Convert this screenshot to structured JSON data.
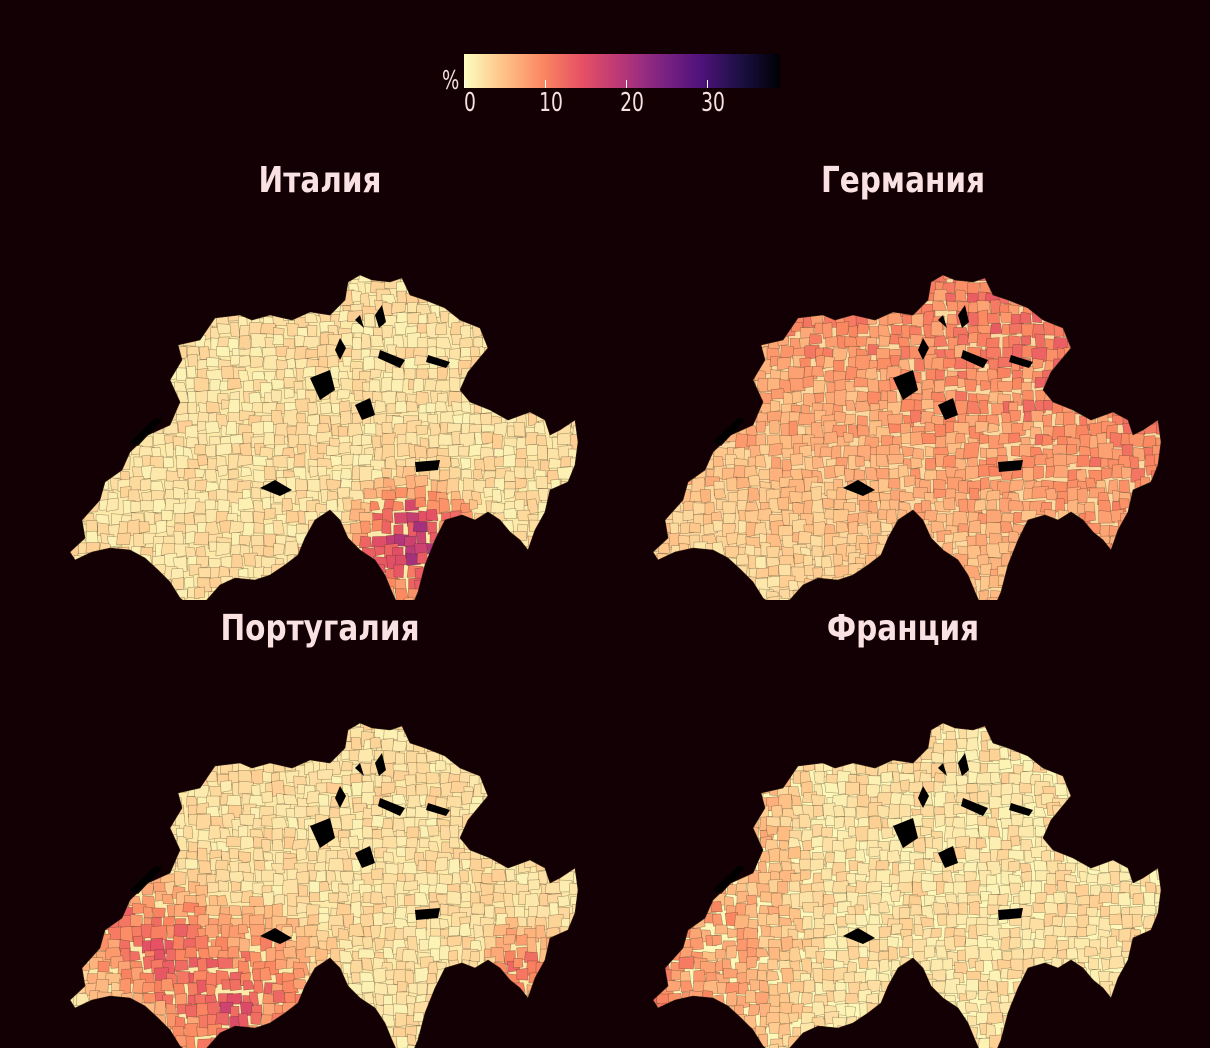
{
  "legend": {
    "unit": "%",
    "ticks": [
      "0",
      "10",
      "20",
      "30"
    ],
    "tick_values": [
      0,
      10,
      20,
      30
    ],
    "range": [
      0,
      39
    ],
    "colormap": [
      "#fcfdbf",
      "#fec287",
      "#fb8761",
      "#e55064",
      "#b73779",
      "#7e2482",
      "#4f127b",
      "#1c1044",
      "#000004"
    ]
  },
  "panels": [
    {
      "title": "Италия",
      "dominant": "#fde9a8",
      "accent": "#b73779",
      "hotspot": "south"
    },
    {
      "title": "Германия",
      "dominant": "#fdd9a0",
      "accent": "#fb8761",
      "hotspot": "north-east"
    },
    {
      "title": "Португалия",
      "dominant": "#fde9a8",
      "accent": "#e55064",
      "hotspot": "south-west"
    },
    {
      "title": "Франция",
      "dominant": "#fdf8b9",
      "accent": "#fb8761",
      "hotspot": "west"
    }
  ]
}
